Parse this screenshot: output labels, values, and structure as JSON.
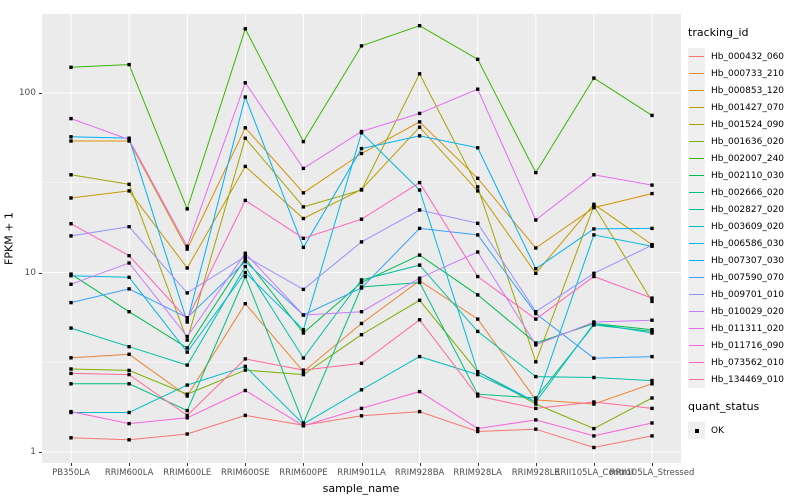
{
  "figure": {
    "panel_bg": "#EBEBEB",
    "grid_color": "#FFFFFF",
    "axis_text_color": "#4D4D4D",
    "axis_title_color": "#000000",
    "point_color": "#000000",
    "legend_key_bg": "#EFEFEF"
  },
  "chart_data": {
    "type": "line",
    "title": "",
    "xlabel": "sample_name",
    "ylabel": "FPKM + 1",
    "y_scale": "log10",
    "y_ticks": [
      1,
      10,
      100
    ],
    "ylim": [
      1,
      280
    ],
    "grid": true,
    "legend_position": "right",
    "point_marker": "black-square",
    "categories": [
      "PB350LA",
      "RRIM600LA",
      "RRIM600LE",
      "RRIM600SE",
      "RRIM600PE",
      "RRIM901LA",
      "RRIM928BA",
      "RRIM928LA",
      "RRIM928LE",
      "RRII105LA_Control",
      "RRII105LA_Stressed"
    ],
    "series": [
      {
        "name": "Hb_000432_060",
        "color": "#F8766D",
        "values": [
          1.2,
          1.17,
          1.26,
          1.6,
          1.41,
          1.59,
          1.68,
          1.3,
          1.34,
          1.06,
          1.23
        ]
      },
      {
        "name": "Hb_000733_210",
        "color": "#EA8331",
        "values": [
          3.35,
          3.5,
          2.05,
          6.7,
          2.8,
          5.2,
          9.0,
          5.5,
          1.95,
          1.85,
          2.4
        ]
      },
      {
        "name": "Hb_000853_120",
        "color": "#D89000",
        "values": [
          54,
          54,
          13.5,
          64,
          27.8,
          46,
          69,
          33.5,
          13.7,
          23,
          27.5
        ]
      },
      {
        "name": "Hb_001427_070",
        "color": "#C09B00",
        "values": [
          26,
          28.5,
          10.6,
          39,
          20,
          29,
          64.5,
          28.5,
          9.9,
          24,
          14.3
        ]
      },
      {
        "name": "Hb_001524_090",
        "color": "#A3A500",
        "values": [
          35,
          31,
          4.2,
          56,
          23.2,
          28.8,
          128,
          30,
          3.18,
          23.5,
          6.9
        ]
      },
      {
        "name": "Hb_001636_020",
        "color": "#7CAE00",
        "values": [
          2.9,
          2.85,
          2.1,
          2.86,
          2.7,
          4.5,
          7.0,
          2.8,
          1.85,
          1.35,
          2.0
        ]
      },
      {
        "name": "Hb_002007_240",
        "color": "#39B600",
        "values": [
          139,
          144,
          22.6,
          228,
          53.6,
          183,
          237,
          154,
          36,
          121,
          75
        ]
      },
      {
        "name": "Hb_002110_030",
        "color": "#00BB4E",
        "values": [
          9.8,
          6.05,
          3.8,
          12.0,
          4.6,
          8.8,
          12.5,
          7.5,
          4.05,
          5.2,
          4.8
        ]
      },
      {
        "name": "Hb_002666_020",
        "color": "#00BF7D",
        "values": [
          2.4,
          2.4,
          1.7,
          9.5,
          1.45,
          8.3,
          8.8,
          2.1,
          2.0,
          5.1,
          4.7
        ]
      },
      {
        "name": "Hb_002827_020",
        "color": "#00C1A3",
        "values": [
          4.9,
          3.86,
          3.05,
          10.8,
          3.34,
          9.1,
          11.0,
          4.7,
          2.63,
          2.6,
          2.5
        ]
      },
      {
        "name": "Hb_003609_020",
        "color": "#00BFC4",
        "values": [
          1.66,
          1.66,
          2.36,
          3.0,
          1.43,
          2.22,
          3.4,
          2.7,
          1.9,
          5.2,
          4.6
        ]
      },
      {
        "name": "Hb_006586_030",
        "color": "#00BAE0",
        "values": [
          9.6,
          9.4,
          3.6,
          10.0,
          4.8,
          60,
          28.8,
          2.8,
          1.9,
          16.2,
          14.0
        ]
      },
      {
        "name": "Hb_007307_030",
        "color": "#00B0F6",
        "values": [
          57,
          56,
          5.3,
          95,
          13.8,
          49,
          57.7,
          49.5,
          10.5,
          17.5,
          17.6
        ]
      },
      {
        "name": "Hb_007590_070",
        "color": "#35A2FF",
        "values": [
          6.8,
          8.1,
          5.6,
          11.5,
          5.8,
          8.2,
          17.6,
          16.2,
          5.9,
          3.33,
          3.4
        ]
      },
      {
        "name": "Hb_009701_010",
        "color": "#9590FF",
        "values": [
          16,
          18,
          7.7,
          12.3,
          8.05,
          14.8,
          22.3,
          18.8,
          6.05,
          9.9,
          14.2
        ]
      },
      {
        "name": "Hb_010029_020",
        "color": "#C77CFF",
        "values": [
          8.6,
          11.3,
          4.4,
          12.8,
          5.8,
          6.05,
          9.3,
          13.0,
          3.95,
          5.3,
          5.42
        ]
      },
      {
        "name": "Hb_011311_020",
        "color": "#E76BF3",
        "values": [
          72,
          55,
          14,
          114,
          38,
          61,
          77,
          105,
          19.6,
          35,
          30.7
        ]
      },
      {
        "name": "Hb_011716_090",
        "color": "#FA62DB",
        "values": [
          1.68,
          1.44,
          1.55,
          2.2,
          1.4,
          1.75,
          2.17,
          1.35,
          1.51,
          1.23,
          1.45
        ]
      },
      {
        "name": "Hb_073562_010",
        "color": "#FF62BC",
        "values": [
          18.7,
          12.4,
          5.5,
          25.2,
          15.5,
          19.8,
          31.7,
          9.5,
          5.5,
          9.5,
          7.2
        ]
      },
      {
        "name": "Hb_134469_010",
        "color": "#FF6A98",
        "values": [
          2.74,
          2.7,
          1.6,
          3.3,
          2.86,
          3.12,
          5.45,
          2.05,
          1.75,
          1.9,
          1.75
        ]
      }
    ],
    "legend": {
      "tracking_title": "tracking_id",
      "quant_title": "quant_status",
      "quant_value": "OK"
    }
  }
}
